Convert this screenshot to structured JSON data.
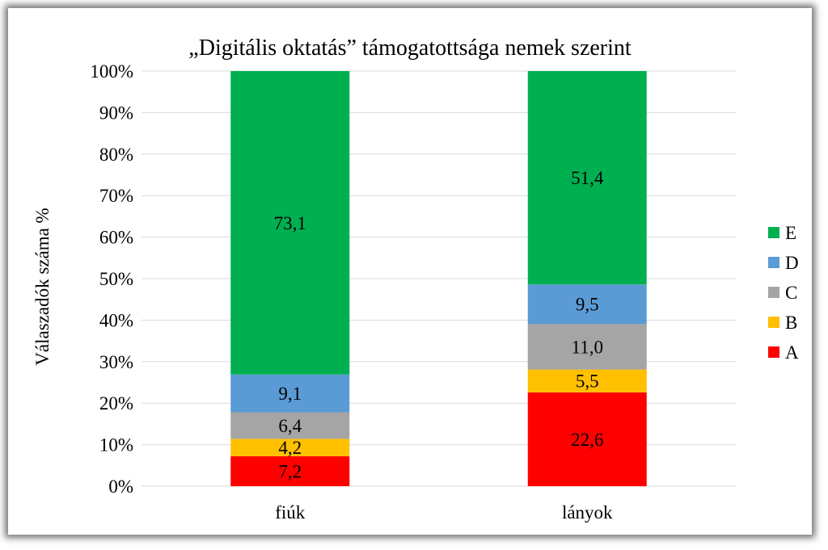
{
  "chart_data": {
    "type": "bar",
    "stacked": true,
    "normalized": true,
    "title": "„Digitális oktatás” támogatottsága nemek szerint",
    "xlabel": "",
    "ylabel": "Válaszadók száma %",
    "ylim": [
      0,
      100
    ],
    "yticks": [
      "0%",
      "10%",
      "20%",
      "30%",
      "40%",
      "50%",
      "60%",
      "70%",
      "80%",
      "90%",
      "100%"
    ],
    "grid": true,
    "legend_position": "right",
    "categories": [
      "fiúk",
      "lányok"
    ],
    "series": [
      {
        "name": "A",
        "color": "#ff0000",
        "values": [
          7.2,
          22.6
        ],
        "labels": [
          "7,2",
          "22,6"
        ]
      },
      {
        "name": "B",
        "color": "#ffc000",
        "values": [
          4.2,
          5.5
        ],
        "labels": [
          "4,2",
          "5,5"
        ]
      },
      {
        "name": "C",
        "color": "#a5a5a5",
        "values": [
          6.4,
          11.0
        ],
        "labels": [
          "6,4",
          "11,0"
        ]
      },
      {
        "name": "D",
        "color": "#5b9bd5",
        "values": [
          9.1,
          9.5
        ],
        "labels": [
          "9,1",
          "9,5"
        ]
      },
      {
        "name": "E",
        "color": "#00b050",
        "values": [
          73.1,
          51.4
        ],
        "labels": [
          "73,1",
          "51,4"
        ]
      }
    ]
  }
}
